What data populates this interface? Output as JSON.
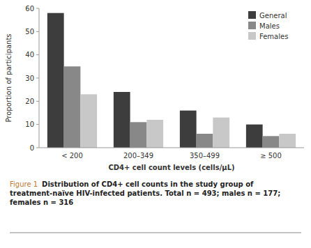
{
  "chart_data": {
    "type": "bar",
    "categories": [
      "< 200",
      "200–349",
      "350–499",
      "≥ 500"
    ],
    "series": [
      {
        "name": "General",
        "color": "#3d3d3d",
        "values": [
          58,
          24,
          16,
          10
        ]
      },
      {
        "name": "Males",
        "color": "#888888",
        "values": [
          35,
          11,
          6,
          5
        ]
      },
      {
        "name": "Females",
        "color": "#c8c8c8",
        "values": [
          23,
          12,
          13,
          6
        ]
      }
    ],
    "xlabel": "CD4+ cell count levels (cells/μL)",
    "ylabel": "Proportion of participants",
    "ylim": [
      0,
      60
    ],
    "yticks": [
      0,
      10,
      20,
      30,
      40,
      50,
      60
    ],
    "grid": false,
    "legend": "upper right",
    "annotations": [
      "Figure 1",
      "Distribution of CD4+ cell counts in the study group of treatment-naïve HIV-infected patients. Total n = 493; males n = 177; females n = 316"
    ]
  }
}
